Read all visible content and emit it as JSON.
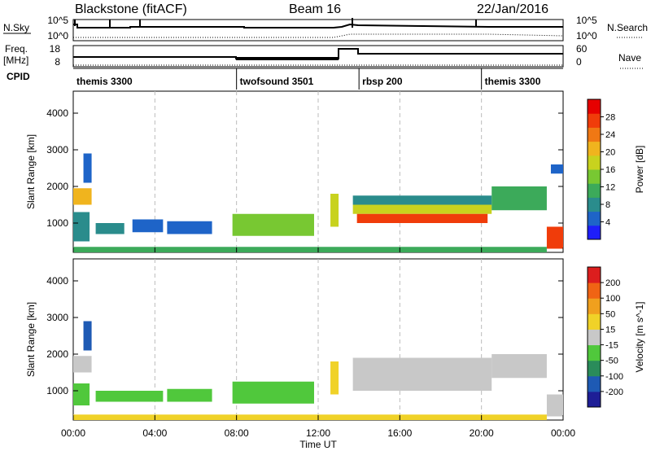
{
  "header": {
    "station": "Blackstone (fitACF)",
    "beam": "Beam 16",
    "date": "22/Jan/2016"
  },
  "noise_panel": {
    "left_label": "N.Sky",
    "left_ticks": [
      "10^5",
      "10^0"
    ],
    "right_label": "N.Search",
    "right_ticks": [
      "10^5",
      "10^0"
    ]
  },
  "freq_panel": {
    "left_label_top": "Freq.",
    "left_label_bottom": "[MHz]",
    "left_ticks": [
      "18",
      "8"
    ],
    "right_label": "Nave",
    "right_ticks": [
      "60",
      "0"
    ]
  },
  "cpid_panel": {
    "label": "CPID",
    "segments": [
      {
        "name": "themis 3300",
        "start_hour": 0
      },
      {
        "name": "twofsound 3501",
        "start_hour": 8
      },
      {
        "name": "rbsp 200",
        "start_hour": 14
      },
      {
        "name": "themis 3300",
        "start_hour": 20
      }
    ]
  },
  "chart_data": [
    {
      "type": "heatmap",
      "ylabel": "Slant Range [km]",
      "yticks": [
        1000,
        2000,
        3000,
        4000
      ],
      "ylim": [
        200,
        4600
      ],
      "xlim_hours": [
        0,
        24
      ],
      "colorbar": {
        "label": "Power [dB]",
        "ticks": [
          "4",
          "8",
          "12",
          "16",
          "20",
          "24",
          "28"
        ],
        "range": [
          0,
          32
        ],
        "colors": [
          "#1e1efa",
          "#1e64c8",
          "#2a8c8c",
          "#3caa5a",
          "#78c832",
          "#c8d21e",
          "#f0b41e",
          "#f07814",
          "#f03c0a",
          "#e60000"
        ]
      },
      "bands": [
        {
          "t0": 0.0,
          "t1": 0.9,
          "r0": 1500,
          "r1": 1950,
          "value": 22
        },
        {
          "t0": 0.0,
          "t1": 0.8,
          "r0": 500,
          "r1": 1300,
          "value": 8
        },
        {
          "t0": 0.5,
          "t1": 0.9,
          "r0": 2100,
          "r1": 2900,
          "value": 5
        },
        {
          "t0": 1.1,
          "t1": 2.5,
          "r0": 700,
          "r1": 1000,
          "value": 8
        },
        {
          "t0": 2.9,
          "t1": 4.4,
          "r0": 750,
          "r1": 1100,
          "value": 6
        },
        {
          "t0": 4.6,
          "t1": 6.8,
          "r0": 700,
          "r1": 1050,
          "value": 5
        },
        {
          "t0": 7.8,
          "t1": 11.8,
          "r0": 650,
          "r1": 1250,
          "value": 15
        },
        {
          "t0": 12.6,
          "t1": 13.0,
          "r0": 900,
          "r1": 1800,
          "value": 16
        },
        {
          "t0": 13.7,
          "t1": 20.5,
          "r0": 1500,
          "r1": 1750,
          "value": 8
        },
        {
          "t0": 13.7,
          "t1": 20.5,
          "r0": 1250,
          "r1": 1500,
          "value": 16
        },
        {
          "t0": 13.9,
          "t1": 20.3,
          "r0": 1000,
          "r1": 1250,
          "value": 26
        },
        {
          "t0": 20.5,
          "t1": 23.2,
          "r0": 1350,
          "r1": 2000,
          "value": 10
        },
        {
          "t0": 23.2,
          "t1": 24.0,
          "r0": 300,
          "r1": 900,
          "value": 26
        },
        {
          "t0": 23.4,
          "t1": 24.0,
          "r0": 2350,
          "r1": 2600,
          "value": 4
        },
        {
          "t0": 0.0,
          "t1": 23.2,
          "r0": 200,
          "r1": 350,
          "value": 12
        }
      ]
    },
    {
      "type": "heatmap",
      "ylabel": "Slant Range [km]",
      "yticks": [
        1000,
        2000,
        3000,
        4000
      ],
      "ylim": [
        200,
        4600
      ],
      "xlabel": "Time UT",
      "xticks": [
        "00:00",
        "04:00",
        "08:00",
        "12:00",
        "16:00",
        "20:00",
        "00:00"
      ],
      "xlim_hours": [
        0,
        24
      ],
      "colorbar": {
        "label": "Velocity [m s^-1]",
        "ticks": [
          "200",
          "100",
          "50",
          "15",
          "-15",
          "-50",
          "-100",
          "-200"
        ],
        "range": [
          -250,
          250
        ],
        "colors": [
          "#1e1e96",
          "#1e5ab4",
          "#2a8c5a",
          "#50c83c",
          "#c8c8c8",
          "#f0d228",
          "#f0a01e",
          "#f06414",
          "#dc1e1e"
        ]
      },
      "bands": [
        {
          "t0": 0.0,
          "t1": 0.9,
          "r0": 1500,
          "r1": 1950,
          "value": 0
        },
        {
          "t0": 0.0,
          "t1": 0.8,
          "r0": 600,
          "r1": 1200,
          "value": -80
        },
        {
          "t0": 0.5,
          "t1": 0.9,
          "r0": 2100,
          "r1": 2900,
          "value": -150
        },
        {
          "t0": 1.1,
          "t1": 4.4,
          "r0": 700,
          "r1": 1000,
          "value": -50
        },
        {
          "t0": 4.6,
          "t1": 6.8,
          "r0": 700,
          "r1": 1050,
          "value": -50
        },
        {
          "t0": 7.8,
          "t1": 11.8,
          "r0": 650,
          "r1": 1250,
          "value": -60
        },
        {
          "t0": 12.6,
          "t1": 13.0,
          "r0": 900,
          "r1": 1800,
          "value": 30
        },
        {
          "t0": 13.7,
          "t1": 20.5,
          "r0": 1000,
          "r1": 1900,
          "value": 0
        },
        {
          "t0": 20.5,
          "t1": 23.2,
          "r0": 1350,
          "r1": 2000,
          "value": 0
        },
        {
          "t0": 23.2,
          "t1": 24.0,
          "r0": 300,
          "r1": 900,
          "value": 0
        },
        {
          "t0": 0.0,
          "t1": 23.2,
          "r0": 200,
          "r1": 350,
          "value": 40
        }
      ]
    }
  ]
}
